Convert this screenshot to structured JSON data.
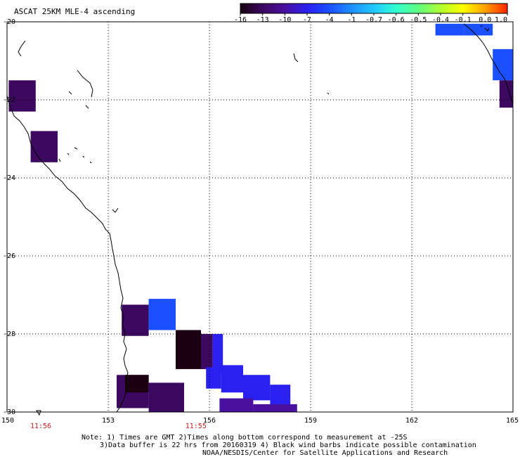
{
  "title": "ASCAT 25KM MLE-4 ascending",
  "colorbar": {
    "labels": [
      "-16",
      "-13",
      "-10",
      "-7",
      "-4",
      "-1",
      "-0.7",
      "-0.6",
      "-0.5",
      "-0.4",
      "-0.1",
      "0.0",
      "1.0"
    ],
    "colors": [
      "#1a0010",
      "#3c0860",
      "#4a10a0",
      "#2a20f0",
      "#1a50ff",
      "#1e90ff",
      "#20c8ff",
      "#30ffd0",
      "#60ff80",
      "#b0ff30",
      "#ffff00",
      "#ffa000",
      "#ff2000"
    ]
  },
  "map": {
    "lon_ticks": [
      "150",
      "153",
      "156",
      "159",
      "162",
      "165"
    ],
    "lat_ticks": [
      "-20",
      "-22",
      "-24",
      "-26",
      "-28",
      "-30"
    ],
    "lon_range": [
      150,
      165
    ],
    "lat_range": [
      -30,
      -20
    ],
    "times": [
      {
        "label": "11:56",
        "lon": 151.0
      },
      {
        "label": "11:55",
        "lon": 155.6
      }
    ]
  },
  "cells": [
    {
      "lon0": 150.05,
      "lon1": 150.85,
      "lat0": -22.3,
      "lat1": -21.5,
      "color": "#3c0860"
    },
    {
      "lon0": 150.7,
      "lon1": 151.5,
      "lat0": -23.6,
      "lat1": -22.8,
      "color": "#3c0860"
    },
    {
      "lon0": 162.7,
      "lon1": 163.55,
      "lat0": -20.35,
      "lat1": -20.05,
      "color": "#1a50ff"
    },
    {
      "lon0": 163.55,
      "lon1": 164.4,
      "lat0": -20.35,
      "lat1": -20.05,
      "color": "#1a50ff"
    },
    {
      "lon0": 164.4,
      "lon1": 165.0,
      "lat0": -21.5,
      "lat1": -20.7,
      "color": "#1a50ff"
    },
    {
      "lon0": 164.6,
      "lon1": 165.0,
      "lat0": -22.2,
      "lat1": -21.5,
      "color": "#3c0860"
    },
    {
      "lon0": 153.4,
      "lon1": 154.2,
      "lat0": -28.05,
      "lat1": -27.25,
      "color": "#3c0860"
    },
    {
      "lon0": 154.2,
      "lon1": 155.0,
      "lat0": -27.9,
      "lat1": -27.1,
      "color": "#1a50ff"
    },
    {
      "lon0": 155.0,
      "lon1": 155.75,
      "lat0": -28.9,
      "lat1": -27.9,
      "color": "#1a0010"
    },
    {
      "lon0": 155.75,
      "lon1": 156.1,
      "lat0": -28.9,
      "lat1": -28.0,
      "color": "#3c0860"
    },
    {
      "lon0": 156.1,
      "lon1": 156.4,
      "lat0": -29.0,
      "lat1": -28.0,
      "color": "#2a20f0"
    },
    {
      "lon0": 155.9,
      "lon1": 156.35,
      "lat0": -29.4,
      "lat1": -28.85,
      "color": "#2a20f0"
    },
    {
      "lon0": 156.35,
      "lon1": 157.0,
      "lat0": -29.5,
      "lat1": -28.8,
      "color": "#2a20f0"
    },
    {
      "lon0": 157.0,
      "lon1": 157.8,
      "lat0": -29.7,
      "lat1": -29.05,
      "color": "#2a20f0"
    },
    {
      "lon0": 157.8,
      "lon1": 158.4,
      "lat0": -29.85,
      "lat1": -29.3,
      "color": "#2a20f0"
    },
    {
      "lon0": 156.3,
      "lon1": 157.3,
      "lat0": -30.0,
      "lat1": -29.65,
      "color": "#4a10a0"
    },
    {
      "lon0": 157.3,
      "lon1": 158.6,
      "lat0": -30.0,
      "lat1": -29.8,
      "color": "#4a10a0"
    },
    {
      "lon0": 153.25,
      "lon1": 154.2,
      "lat0": -29.9,
      "lat1": -29.05,
      "color": "#3c0860"
    },
    {
      "lon0": 153.5,
      "lon1": 154.2,
      "lat0": -29.5,
      "lat1": -29.05,
      "color": "#1a0010"
    },
    {
      "lon0": 154.2,
      "lon1": 155.25,
      "lat0": -30.0,
      "lat1": -29.25,
      "color": "#3c0860"
    }
  ],
  "notes": [
    "Note: 1) Times are GMT 2)Times along bottom correspond to measurement at -25S",
    "3)Data buffer is 22 hrs from 20160319 4) Black wind barbs indicate possible contamination",
    "NOAA/NESDIS/Center for Satellite Applications and Research"
  ]
}
